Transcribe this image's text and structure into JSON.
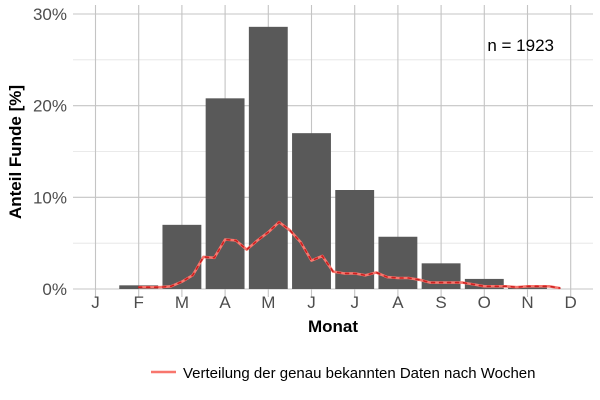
{
  "chart_data": {
    "type": "bar",
    "categories": [
      "J",
      "F",
      "M",
      "A",
      "M",
      "J",
      "J",
      "A",
      "S",
      "O",
      "N",
      "D"
    ],
    "values": [
      0,
      0.4,
      7.0,
      20.8,
      28.6,
      17.0,
      10.8,
      5.7,
      2.8,
      1.1,
      0.3,
      0
    ],
    "ylim": [
      0,
      30
    ],
    "yticks": [
      0,
      10,
      20,
      30
    ],
    "ytick_labels": [
      "0%",
      "10%",
      "20%",
      "30%"
    ],
    "xlabel": "Monat",
    "ylabel": "Anteil Funde [%]",
    "annotation": "n = 1923",
    "grid": true,
    "legend_position": "bottom",
    "bar_color": "#595959",
    "line_color": "#f8766d",
    "line_series": {
      "name": "Verteilung der genau bekannten Daten nach Wochen",
      "x": [
        1.0,
        1.25,
        1.5,
        1.75,
        2.0,
        2.25,
        2.5,
        2.75,
        3.0,
        3.25,
        3.5,
        3.75,
        4.0,
        4.25,
        4.5,
        4.75,
        5.0,
        5.25,
        5.5,
        5.75,
        6.0,
        6.25,
        6.5,
        6.75,
        7.0,
        7.25,
        7.5,
        7.75,
        8.0,
        8.25,
        8.5,
        8.75,
        9.0,
        9.25,
        9.5,
        9.75,
        10.0,
        10.25,
        10.5,
        10.75
      ],
      "values": [
        0.2,
        0.2,
        0.2,
        0.3,
        0.8,
        1.5,
        3.5,
        3.4,
        5.4,
        5.3,
        4.3,
        5.3,
        6.2,
        7.3,
        6.4,
        5.1,
        3.1,
        3.6,
        1.9,
        1.7,
        1.7,
        1.5,
        1.8,
        1.3,
        1.2,
        1.2,
        1.0,
        0.7,
        0.7,
        0.7,
        0.7,
        0.5,
        0.3,
        0.3,
        0.3,
        0.2,
        0.3,
        0.3,
        0.3,
        0.1
      ]
    }
  }
}
